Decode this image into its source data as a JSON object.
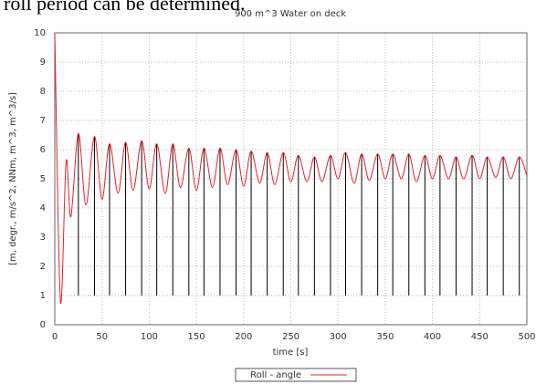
{
  "text": "roll period can be determined.",
  "chart_data": {
    "type": "line",
    "title": "900 m^3 Water on deck",
    "x_label": "time [s]",
    "y_label": "[m, degr., m/s^2, NNm, m^3, m^3/s]",
    "xlim": [
      0,
      500
    ],
    "xticks": [
      0,
      50,
      100,
      150,
      200,
      250,
      300,
      350,
      400,
      450,
      500
    ],
    "ylim": [
      0,
      10
    ],
    "yticks": [
      0,
      1,
      2,
      3,
      4,
      5,
      6,
      7,
      8,
      9,
      10
    ],
    "grid": true,
    "legend": "bottom",
    "series": [
      {
        "name": "Roll - angle",
        "color": "#e8202a",
        "x": [
          0,
          6,
          12,
          17,
          25,
          33,
          42,
          50,
          58,
          67,
          75,
          83,
          92,
          100,
          108,
          117,
          125,
          133,
          142,
          150,
          158,
          167,
          175,
          183,
          192,
          200,
          208,
          217,
          225,
          233,
          242,
          250,
          258,
          267,
          275,
          283,
          292,
          300,
          308,
          317,
          325,
          333,
          342,
          350,
          358,
          367,
          375,
          383,
          392,
          400,
          408,
          417,
          425,
          433,
          442,
          450,
          458,
          467,
          475,
          483,
          492,
          500
        ],
        "values": [
          10,
          0.8,
          5.6,
          3.7,
          6.55,
          4.1,
          6.45,
          4.3,
          6.2,
          4.5,
          6.25,
          4.6,
          6.3,
          4.65,
          6.2,
          4.5,
          6.2,
          4.7,
          6.05,
          4.6,
          6.05,
          4.7,
          6.05,
          4.8,
          6.0,
          4.75,
          5.95,
          4.85,
          5.9,
          4.8,
          5.9,
          4.9,
          5.8,
          4.9,
          5.75,
          4.9,
          5.8,
          5.0,
          5.9,
          4.85,
          5.85,
          4.95,
          5.85,
          5.0,
          5.85,
          5.0,
          5.85,
          4.9,
          5.8,
          5.0,
          5.8,
          5.0,
          5.75,
          5.0,
          5.8,
          5.0,
          5.75,
          5.05,
          5.75,
          5.0,
          5.75,
          5.1
        ]
      }
    ],
    "markers": {
      "color": "#000000",
      "base": 1,
      "x": [
        25,
        42,
        58,
        75,
        92,
        108,
        125,
        142,
        158,
        175,
        192,
        208,
        225,
        242,
        258,
        275,
        292,
        308,
        325,
        342,
        358,
        375,
        392,
        408,
        425,
        442,
        458,
        475,
        492
      ],
      "values": [
        6.55,
        6.45,
        6.2,
        6.25,
        6.3,
        6.2,
        6.2,
        6.05,
        6.05,
        6.05,
        6.0,
        5.95,
        5.9,
        5.9,
        5.8,
        5.75,
        5.8,
        5.9,
        5.85,
        5.85,
        5.85,
        5.85,
        5.8,
        5.8,
        5.75,
        5.8,
        5.75,
        5.75,
        5.75
      ]
    }
  }
}
